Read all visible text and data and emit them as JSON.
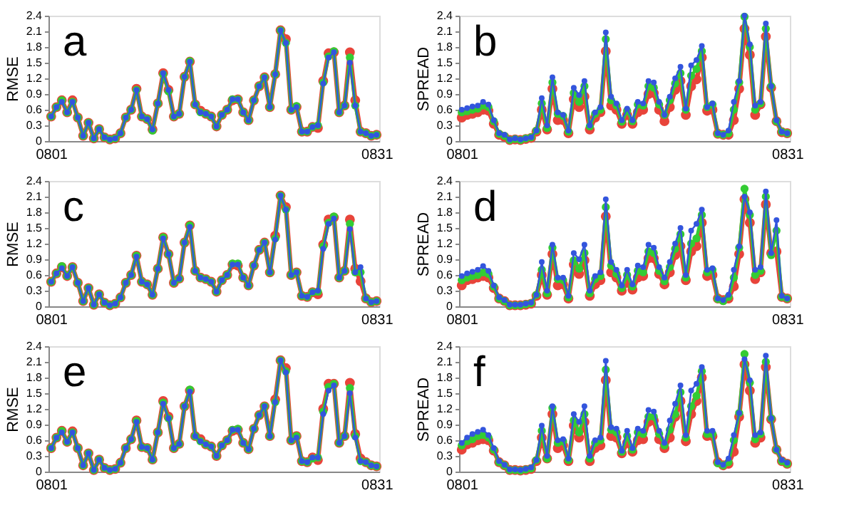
{
  "chart_data": [
    {
      "type": "line",
      "ylabel": "RMSE",
      "annotations": [
        "a"
      ],
      "marker": "circle",
      "grid": false,
      "legend": false,
      "ylim": [
        0,
        2.4
      ],
      "yticks": [
        0,
        0.3,
        0.6,
        0.9,
        1.2,
        1.5,
        1.8,
        2.1,
        2.4
      ],
      "categories": [
        "0801",
        null,
        null,
        null,
        null,
        null,
        null,
        null,
        null,
        null,
        null,
        null,
        null,
        null,
        null,
        null,
        null,
        null,
        null,
        null,
        null,
        null,
        null,
        null,
        null,
        null,
        null,
        null,
        null,
        null,
        null,
        null,
        null,
        null,
        null,
        null,
        null,
        null,
        null,
        null,
        null,
        null,
        null,
        null,
        null,
        null,
        null,
        null,
        null,
        null,
        null,
        null,
        null,
        null,
        null,
        null,
        null,
        null,
        null,
        null,
        null,
        "0831"
      ],
      "series": [
        {
          "color": "#e8443a",
          "values": [
            0.47,
            0.65,
            0.78,
            0.55,
            0.78,
            0.45,
            0.1,
            0.35,
            0.05,
            0.23,
            0.07,
            0.03,
            0.05,
            0.15,
            0.45,
            0.6,
            1.0,
            0.47,
            0.42,
            0.22,
            0.72,
            1.3,
            0.98,
            0.47,
            0.52,
            1.23,
            1.52,
            0.7,
            0.58,
            0.52,
            0.47,
            0.28,
            0.5,
            0.6,
            0.78,
            0.8,
            0.55,
            0.4,
            0.78,
            1.05,
            1.22,
            0.65,
            1.28,
            2.12,
            1.95,
            0.6,
            0.65,
            0.18,
            0.18,
            0.27,
            0.25,
            1.15,
            1.68,
            1.7,
            0.55,
            0.68,
            1.7,
            0.78,
            0.18,
            0.15,
            0.1,
            0.12
          ]
        },
        {
          "color": "#33cc33",
          "values": [
            0.47,
            0.65,
            0.78,
            0.55,
            0.75,
            0.45,
            0.1,
            0.35,
            0.05,
            0.23,
            0.07,
            0.03,
            0.05,
            0.15,
            0.45,
            0.6,
            0.98,
            0.47,
            0.42,
            0.2,
            0.72,
            1.28,
            0.95,
            0.47,
            0.52,
            1.23,
            1.53,
            0.7,
            0.55,
            0.52,
            0.47,
            0.28,
            0.5,
            0.6,
            0.8,
            0.8,
            0.55,
            0.4,
            0.78,
            1.05,
            1.22,
            0.65,
            1.28,
            2.12,
            1.88,
            0.6,
            0.67,
            0.18,
            0.18,
            0.27,
            0.3,
            1.12,
            1.62,
            1.72,
            0.55,
            0.68,
            1.6,
            0.68,
            0.18,
            0.15,
            0.1,
            0.12
          ]
        },
        {
          "color": "#3355dd",
          "values": [
            0.47,
            0.65,
            0.75,
            0.55,
            0.75,
            0.45,
            0.1,
            0.35,
            0.05,
            0.23,
            0.07,
            0.03,
            0.05,
            0.15,
            0.45,
            0.6,
            0.98,
            0.47,
            0.42,
            0.22,
            0.72,
            1.3,
            0.98,
            0.47,
            0.52,
            1.23,
            1.52,
            0.7,
            0.55,
            0.52,
            0.47,
            0.28,
            0.5,
            0.6,
            0.8,
            0.8,
            0.55,
            0.4,
            0.78,
            1.05,
            1.22,
            0.65,
            1.28,
            2.12,
            1.88,
            0.6,
            0.65,
            0.18,
            0.18,
            0.27,
            0.3,
            1.1,
            1.6,
            1.7,
            0.55,
            0.68,
            1.5,
            0.68,
            0.18,
            0.15,
            0.1,
            0.12
          ]
        }
      ]
    },
    {
      "type": "line",
      "ylabel": "SPREAD",
      "annotations": [
        "b"
      ],
      "marker": "circle",
      "grid": false,
      "legend": false,
      "ylim": [
        0,
        2.4
      ],
      "yticks": [
        0,
        0.3,
        0.6,
        0.9,
        1.2,
        1.5,
        1.8,
        2.1,
        2.4
      ],
      "categories": [
        "0801",
        null,
        null,
        null,
        null,
        null,
        null,
        null,
        null,
        null,
        null,
        null,
        null,
        null,
        null,
        null,
        null,
        null,
        null,
        null,
        null,
        null,
        null,
        null,
        null,
        null,
        null,
        null,
        null,
        null,
        null,
        null,
        null,
        null,
        null,
        null,
        null,
        null,
        null,
        null,
        null,
        null,
        null,
        null,
        null,
        null,
        null,
        null,
        null,
        null,
        null,
        null,
        null,
        null,
        null,
        null,
        null,
        null,
        null,
        null,
        null,
        "0831"
      ],
      "series": [
        {
          "color": "#e8443a",
          "values": [
            0.45,
            0.5,
            0.52,
            0.55,
            0.6,
            0.58,
            0.33,
            0.12,
            0.08,
            0.02,
            0.03,
            0.02,
            0.04,
            0.06,
            0.18,
            0.6,
            0.22,
            1.0,
            0.4,
            0.4,
            0.15,
            0.8,
            0.65,
            0.85,
            0.22,
            0.45,
            0.55,
            1.72,
            0.68,
            0.6,
            0.33,
            0.5,
            0.33,
            0.55,
            0.6,
            0.9,
            0.92,
            0.6,
            0.38,
            0.65,
            0.98,
            1.15,
            0.5,
            1.05,
            1.18,
            1.6,
            0.58,
            0.6,
            0.14,
            0.12,
            0.12,
            0.4,
            1.0,
            2.15,
            1.65,
            0.5,
            0.7,
            2.0,
            1.02,
            0.38,
            0.17,
            0.15
          ]
        },
        {
          "color": "#33cc33",
          "values": [
            0.55,
            0.57,
            0.6,
            0.62,
            0.68,
            0.65,
            0.38,
            0.14,
            0.1,
            0.02,
            0.04,
            0.02,
            0.05,
            0.07,
            0.2,
            0.72,
            0.25,
            1.12,
            0.52,
            0.48,
            0.18,
            0.92,
            0.75,
            1.05,
            0.28,
            0.52,
            0.6,
            1.95,
            0.78,
            0.68,
            0.37,
            0.58,
            0.38,
            0.7,
            0.68,
            1.05,
            1.02,
            0.7,
            0.5,
            0.78,
            1.1,
            1.3,
            0.6,
            1.25,
            1.38,
            1.72,
            0.65,
            0.7,
            0.14,
            0.12,
            0.15,
            0.6,
            1.12,
            2.38,
            1.8,
            0.6,
            0.72,
            2.15,
            1.05,
            0.38,
            0.18,
            0.15
          ]
        },
        {
          "color": "#3355dd",
          "values": [
            0.6,
            0.63,
            0.66,
            0.68,
            0.75,
            0.7,
            0.4,
            0.15,
            0.12,
            0.03,
            0.05,
            0.03,
            0.05,
            0.07,
            0.2,
            0.82,
            0.3,
            1.22,
            0.55,
            0.5,
            0.2,
            1.02,
            0.88,
            1.15,
            0.3,
            0.55,
            0.65,
            2.08,
            0.85,
            0.72,
            0.4,
            0.62,
            0.4,
            0.75,
            0.72,
            1.15,
            1.12,
            0.75,
            0.5,
            0.85,
            1.2,
            1.42,
            0.62,
            1.45,
            1.55,
            1.82,
            0.65,
            0.72,
            0.15,
            0.12,
            0.2,
            0.75,
            1.15,
            2.4,
            1.85,
            0.68,
            0.75,
            2.25,
            1.05,
            0.4,
            0.18,
            0.15
          ]
        }
      ]
    },
    {
      "type": "line",
      "ylabel": "RMSE",
      "annotations": [
        "c"
      ],
      "marker": "circle",
      "grid": false,
      "legend": false,
      "ylim": [
        0,
        2.4
      ],
      "yticks": [
        0,
        0.3,
        0.6,
        0.9,
        1.2,
        1.5,
        1.8,
        2.1,
        2.4
      ],
      "categories": [
        "0801",
        null,
        null,
        null,
        null,
        null,
        null,
        null,
        null,
        null,
        null,
        null,
        null,
        null,
        null,
        null,
        null,
        null,
        null,
        null,
        null,
        null,
        null,
        null,
        null,
        null,
        null,
        null,
        null,
        null,
        null,
        null,
        null,
        null,
        null,
        null,
        null,
        null,
        null,
        null,
        null,
        null,
        null,
        null,
        null,
        null,
        null,
        null,
        null,
        null,
        null,
        null,
        null,
        null,
        null,
        null,
        null,
        null,
        null,
        null,
        null,
        "0831"
      ],
      "series": [
        {
          "color": "#e8443a",
          "values": [
            0.47,
            0.63,
            0.75,
            0.58,
            0.75,
            0.45,
            0.1,
            0.35,
            0.03,
            0.23,
            0.07,
            0.02,
            0.05,
            0.17,
            0.45,
            0.6,
            0.97,
            0.47,
            0.42,
            0.22,
            0.72,
            1.32,
            1.0,
            0.45,
            0.53,
            1.22,
            1.55,
            0.68,
            0.55,
            0.52,
            0.47,
            0.28,
            0.5,
            0.6,
            0.8,
            0.78,
            0.55,
            0.4,
            0.78,
            1.08,
            1.22,
            0.65,
            1.35,
            2.12,
            1.9,
            0.6,
            0.65,
            0.2,
            0.18,
            0.27,
            0.23,
            1.18,
            1.66,
            1.7,
            0.55,
            0.68,
            1.66,
            0.72,
            0.48,
            0.15,
            0.08,
            0.1
          ]
        },
        {
          "color": "#33cc33",
          "values": [
            0.47,
            0.63,
            0.77,
            0.58,
            0.75,
            0.45,
            0.1,
            0.35,
            0.03,
            0.23,
            0.07,
            0.02,
            0.05,
            0.17,
            0.45,
            0.6,
            0.97,
            0.47,
            0.42,
            0.22,
            0.72,
            1.32,
            1.0,
            0.45,
            0.53,
            1.22,
            1.55,
            0.68,
            0.55,
            0.52,
            0.47,
            0.28,
            0.5,
            0.6,
            0.82,
            0.82,
            0.55,
            0.4,
            0.78,
            1.08,
            1.22,
            0.65,
            1.3,
            2.12,
            1.85,
            0.6,
            0.65,
            0.2,
            0.18,
            0.27,
            0.28,
            1.15,
            1.6,
            1.72,
            0.55,
            0.68,
            1.58,
            0.65,
            0.65,
            0.15,
            0.08,
            0.1
          ]
        },
        {
          "color": "#3355dd",
          "values": [
            0.47,
            0.63,
            0.73,
            0.58,
            0.75,
            0.45,
            0.1,
            0.35,
            0.03,
            0.23,
            0.07,
            0.02,
            0.05,
            0.17,
            0.45,
            0.6,
            0.95,
            0.47,
            0.42,
            0.22,
            0.72,
            1.3,
            1.0,
            0.45,
            0.53,
            1.22,
            1.52,
            0.68,
            0.55,
            0.52,
            0.47,
            0.28,
            0.5,
            0.6,
            0.8,
            0.8,
            0.55,
            0.4,
            0.78,
            1.08,
            1.22,
            0.65,
            1.28,
            2.12,
            1.85,
            0.6,
            0.65,
            0.2,
            0.18,
            0.27,
            0.3,
            1.1,
            1.58,
            1.68,
            0.55,
            0.68,
            1.48,
            0.65,
            0.75,
            0.15,
            0.08,
            0.1
          ]
        }
      ]
    },
    {
      "type": "line",
      "ylabel": "SPREAD",
      "annotations": [
        "d"
      ],
      "marker": "circle",
      "grid": false,
      "legend": false,
      "ylim": [
        0,
        2.4
      ],
      "yticks": [
        0,
        0.3,
        0.6,
        0.9,
        1.2,
        1.5,
        1.8,
        2.1,
        2.4
      ],
      "categories": [
        "0801",
        null,
        null,
        null,
        null,
        null,
        null,
        null,
        null,
        null,
        null,
        null,
        null,
        null,
        null,
        null,
        null,
        null,
        null,
        null,
        null,
        null,
        null,
        null,
        null,
        null,
        null,
        null,
        null,
        null,
        null,
        null,
        null,
        null,
        null,
        null,
        null,
        null,
        null,
        null,
        null,
        null,
        null,
        null,
        null,
        null,
        null,
        null,
        null,
        null,
        null,
        null,
        null,
        null,
        null,
        null,
        null,
        null,
        null,
        null,
        null,
        "0831"
      ],
      "series": [
        {
          "color": "#e8443a",
          "values": [
            0.4,
            0.5,
            0.52,
            0.55,
            0.58,
            0.55,
            0.35,
            0.15,
            0.1,
            0.02,
            0.02,
            0.02,
            0.03,
            0.05,
            0.2,
            0.6,
            0.22,
            1.0,
            0.4,
            0.42,
            0.15,
            0.8,
            0.62,
            0.88,
            0.2,
            0.42,
            0.5,
            1.72,
            0.65,
            0.55,
            0.3,
            0.45,
            0.32,
            0.55,
            0.58,
            0.92,
            0.92,
            0.62,
            0.42,
            0.65,
            0.98,
            1.15,
            0.5,
            1.05,
            1.15,
            1.6,
            0.58,
            0.6,
            0.15,
            0.12,
            0.15,
            0.38,
            1.0,
            2.05,
            1.6,
            0.52,
            0.65,
            1.95,
            1.02,
            1.05,
            0.18,
            0.15
          ]
        },
        {
          "color": "#33cc33",
          "values": [
            0.5,
            0.55,
            0.58,
            0.6,
            0.65,
            0.62,
            0.38,
            0.15,
            0.1,
            0.02,
            0.02,
            0.02,
            0.04,
            0.06,
            0.22,
            0.7,
            0.25,
            1.12,
            0.52,
            0.5,
            0.17,
            0.88,
            0.72,
            1.02,
            0.25,
            0.52,
            0.58,
            1.9,
            0.78,
            0.62,
            0.35,
            0.6,
            0.38,
            0.68,
            0.65,
            1.05,
            1.02,
            0.68,
            0.48,
            0.75,
            1.1,
            1.38,
            0.55,
            1.2,
            1.3,
            1.75,
            0.65,
            0.7,
            0.14,
            0.1,
            0.18,
            0.55,
            1.12,
            2.25,
            1.75,
            0.6,
            0.68,
            2.1,
            0.98,
            1.45,
            0.18,
            0.15
          ]
        },
        {
          "color": "#3355dd",
          "values": [
            0.58,
            0.63,
            0.66,
            0.7,
            0.77,
            0.68,
            0.4,
            0.17,
            0.12,
            0.03,
            0.03,
            0.03,
            0.05,
            0.07,
            0.22,
            0.85,
            0.3,
            1.18,
            0.55,
            0.55,
            0.2,
            1.02,
            0.9,
            1.18,
            0.3,
            0.58,
            0.65,
            2.05,
            0.85,
            0.7,
            0.4,
            0.7,
            0.42,
            0.78,
            0.75,
            1.18,
            1.12,
            0.75,
            0.55,
            0.85,
            1.2,
            1.5,
            0.6,
            1.45,
            1.58,
            1.85,
            0.7,
            0.73,
            0.15,
            0.12,
            0.22,
            0.7,
            1.15,
            2.1,
            1.8,
            0.7,
            0.75,
            2.2,
            1.02,
            1.65,
            0.2,
            0.15
          ]
        }
      ]
    },
    {
      "type": "line",
      "ylabel": "RMSE",
      "annotations": [
        "e"
      ],
      "marker": "circle",
      "grid": false,
      "legend": false,
      "ylim": [
        0,
        2.4
      ],
      "yticks": [
        0,
        0.3,
        0.6,
        0.9,
        1.2,
        1.5,
        1.8,
        2.1,
        2.4
      ],
      "categories": [
        "0801",
        null,
        null,
        null,
        null,
        null,
        null,
        null,
        null,
        null,
        null,
        null,
        null,
        null,
        null,
        null,
        null,
        null,
        null,
        null,
        null,
        null,
        null,
        null,
        null,
        null,
        null,
        null,
        null,
        null,
        null,
        null,
        null,
        null,
        null,
        null,
        null,
        null,
        null,
        null,
        null,
        null,
        null,
        null,
        null,
        null,
        null,
        null,
        null,
        null,
        null,
        null,
        null,
        null,
        null,
        null,
        null,
        null,
        null,
        null,
        null,
        "0831"
      ],
      "series": [
        {
          "color": "#e8443a",
          "values": [
            0.45,
            0.65,
            0.78,
            0.57,
            0.77,
            0.45,
            0.12,
            0.35,
            0.03,
            0.23,
            0.07,
            0.03,
            0.05,
            0.17,
            0.45,
            0.62,
            0.98,
            0.47,
            0.45,
            0.23,
            0.75,
            1.35,
            1.05,
            0.45,
            0.53,
            1.25,
            1.55,
            0.68,
            0.62,
            0.52,
            0.48,
            0.3,
            0.5,
            0.6,
            0.78,
            0.8,
            0.55,
            0.43,
            0.82,
            1.08,
            1.25,
            0.68,
            1.38,
            2.13,
            1.98,
            0.6,
            0.68,
            0.2,
            0.18,
            0.27,
            0.22,
            1.2,
            1.68,
            1.68,
            0.55,
            0.68,
            1.7,
            0.72,
            0.25,
            0.18,
            0.12,
            0.1
          ]
        },
        {
          "color": "#33cc33",
          "values": [
            0.45,
            0.65,
            0.78,
            0.57,
            0.75,
            0.45,
            0.12,
            0.35,
            0.03,
            0.23,
            0.07,
            0.03,
            0.05,
            0.17,
            0.45,
            0.62,
            0.97,
            0.47,
            0.45,
            0.23,
            0.75,
            1.32,
            1.02,
            0.45,
            0.53,
            1.25,
            1.57,
            0.68,
            0.58,
            0.52,
            0.48,
            0.3,
            0.5,
            0.6,
            0.8,
            0.82,
            0.55,
            0.43,
            0.82,
            1.08,
            1.25,
            0.68,
            1.33,
            2.13,
            1.92,
            0.6,
            0.68,
            0.2,
            0.18,
            0.25,
            0.27,
            1.15,
            1.62,
            1.68,
            0.55,
            0.68,
            1.6,
            0.68,
            0.2,
            0.18,
            0.12,
            0.1
          ]
        },
        {
          "color": "#3355dd",
          "values": [
            0.45,
            0.65,
            0.75,
            0.57,
            0.75,
            0.45,
            0.12,
            0.35,
            0.03,
            0.23,
            0.07,
            0.03,
            0.05,
            0.17,
            0.45,
            0.62,
            0.95,
            0.47,
            0.45,
            0.23,
            0.75,
            1.3,
            1.02,
            0.45,
            0.53,
            1.25,
            1.53,
            0.68,
            0.58,
            0.52,
            0.48,
            0.3,
            0.5,
            0.6,
            0.8,
            0.8,
            0.55,
            0.43,
            0.82,
            1.08,
            1.25,
            0.68,
            1.33,
            2.13,
            1.9,
            0.6,
            0.65,
            0.2,
            0.18,
            0.27,
            0.27,
            1.1,
            1.55,
            1.65,
            0.55,
            0.68,
            1.5,
            0.65,
            0.2,
            0.18,
            0.12,
            0.1
          ]
        }
      ]
    },
    {
      "type": "line",
      "ylabel": "SPREAD",
      "annotations": [
        "f"
      ],
      "marker": "circle",
      "grid": false,
      "legend": false,
      "ylim": [
        0,
        2.4
      ],
      "yticks": [
        0,
        0.3,
        0.6,
        0.9,
        1.2,
        1.5,
        1.8,
        2.1,
        2.4
      ],
      "categories": [
        "0801",
        null,
        null,
        null,
        null,
        null,
        null,
        null,
        null,
        null,
        null,
        null,
        null,
        null,
        null,
        null,
        null,
        null,
        null,
        null,
        null,
        null,
        null,
        null,
        null,
        null,
        null,
        null,
        null,
        null,
        null,
        null,
        null,
        null,
        null,
        null,
        null,
        null,
        null,
        null,
        null,
        null,
        null,
        null,
        null,
        null,
        null,
        null,
        null,
        null,
        null,
        null,
        null,
        null,
        null,
        null,
        null,
        null,
        null,
        null,
        null,
        "0831"
      ],
      "series": [
        {
          "color": "#e8443a",
          "values": [
            0.42,
            0.52,
            0.55,
            0.6,
            0.62,
            0.6,
            0.4,
            0.18,
            0.12,
            0.03,
            0.03,
            0.02,
            0.03,
            0.05,
            0.2,
            0.65,
            0.25,
            1.1,
            0.45,
            0.5,
            0.2,
            0.88,
            0.65,
            0.95,
            0.2,
            0.45,
            0.5,
            1.75,
            0.68,
            0.65,
            0.35,
            0.55,
            0.38,
            0.6,
            0.62,
            0.95,
            0.98,
            0.62,
            0.45,
            0.65,
            1.05,
            1.35,
            0.58,
            1.1,
            1.35,
            1.8,
            0.68,
            0.68,
            0.18,
            0.12,
            0.15,
            0.38,
            1.05,
            2.05,
            1.55,
            0.55,
            0.65,
            2.0,
            1.0,
            0.42,
            0.2,
            0.15
          ]
        },
        {
          "color": "#33cc33",
          "values": [
            0.5,
            0.58,
            0.62,
            0.68,
            0.7,
            0.65,
            0.42,
            0.18,
            0.12,
            0.03,
            0.03,
            0.02,
            0.04,
            0.06,
            0.22,
            0.78,
            0.25,
            1.22,
            0.55,
            0.58,
            0.22,
            0.98,
            0.75,
            1.1,
            0.25,
            0.55,
            0.6,
            1.95,
            0.8,
            0.75,
            0.38,
            0.68,
            0.42,
            0.75,
            0.72,
            1.05,
            1.05,
            0.72,
            0.5,
            0.8,
            1.1,
            1.52,
            0.65,
            1.25,
            1.45,
            1.92,
            0.72,
            0.72,
            0.16,
            0.12,
            0.18,
            0.6,
            1.12,
            2.25,
            1.7,
            0.62,
            0.72,
            2.1,
            1.02,
            0.42,
            0.2,
            0.15
          ]
        },
        {
          "color": "#3355dd",
          "values": [
            0.55,
            0.65,
            0.72,
            0.76,
            0.8,
            0.7,
            0.45,
            0.2,
            0.13,
            0.04,
            0.04,
            0.03,
            0.05,
            0.08,
            0.22,
            0.88,
            0.3,
            1.25,
            0.6,
            0.62,
            0.25,
            1.1,
            0.95,
            1.25,
            0.3,
            0.6,
            0.65,
            2.12,
            0.85,
            0.82,
            0.4,
            0.78,
            0.45,
            0.82,
            0.78,
            1.18,
            1.15,
            0.78,
            0.55,
            0.98,
            1.3,
            1.65,
            0.7,
            1.55,
            1.68,
            2.0,
            0.78,
            0.78,
            0.18,
            0.13,
            0.25,
            0.7,
            1.12,
            2.15,
            1.75,
            0.7,
            0.75,
            2.22,
            1.02,
            0.42,
            0.22,
            0.17
          ]
        }
      ]
    }
  ]
}
